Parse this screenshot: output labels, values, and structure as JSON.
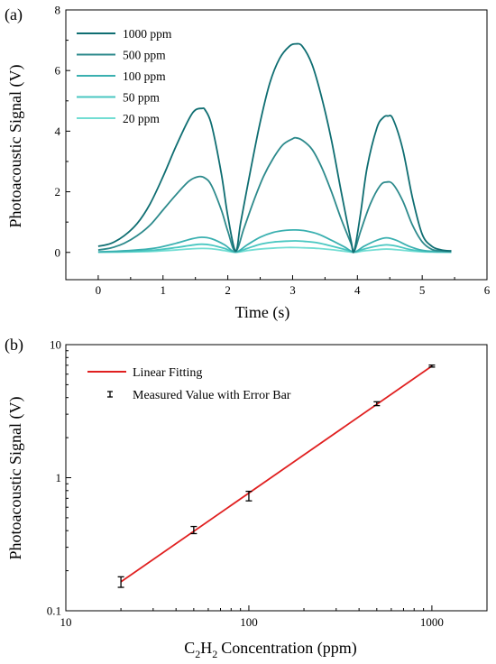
{
  "chart_data": [
    {
      "panel_label": "(a)",
      "type": "line",
      "xlabel": "Time (s)",
      "ylabel": "Photoacoustic Signal (V)",
      "xlim": [
        -0.5,
        6
      ],
      "ylim": [
        -0.9,
        8
      ],
      "xticks": [
        "0",
        "1",
        "2",
        "3",
        "4",
        "5",
        "6"
      ],
      "yticks": [
        "0",
        "2",
        "4",
        "6",
        "8"
      ],
      "legend_position": "top-left",
      "grid": false,
      "series": [
        {
          "name": "1000 ppm",
          "color": "#0f6e72",
          "x": [
            0,
            0.2,
            0.4,
            0.6,
            0.8,
            1.0,
            1.2,
            1.4,
            1.5,
            1.6,
            1.65,
            1.75,
            1.9,
            2.0,
            2.12,
            2.2,
            2.35,
            2.5,
            2.65,
            2.8,
            2.95,
            3.05,
            3.15,
            3.3,
            3.45,
            3.6,
            3.75,
            3.9,
            3.95,
            4.05,
            4.15,
            4.3,
            4.4,
            4.47,
            4.55,
            4.7,
            4.85,
            5.0,
            5.15,
            5.3,
            5.45
          ],
          "y": [
            0.2,
            0.3,
            0.55,
            0.95,
            1.6,
            2.5,
            3.5,
            4.4,
            4.7,
            4.75,
            4.7,
            4.2,
            2.6,
            1.2,
            0.05,
            1.0,
            2.7,
            4.3,
            5.6,
            6.4,
            6.8,
            6.88,
            6.8,
            6.2,
            5.1,
            3.7,
            2.0,
            0.4,
            0.05,
            1.3,
            2.8,
            4.1,
            4.45,
            4.5,
            4.4,
            3.4,
            1.8,
            0.6,
            0.2,
            0.08,
            0.05
          ]
        },
        {
          "name": "500 ppm",
          "color": "#2d8a8c",
          "x": [
            0,
            0.2,
            0.4,
            0.6,
            0.8,
            1.0,
            1.2,
            1.4,
            1.55,
            1.65,
            1.75,
            1.9,
            2.0,
            2.12,
            2.25,
            2.4,
            2.55,
            2.7,
            2.85,
            3.0,
            3.05,
            3.15,
            3.3,
            3.45,
            3.6,
            3.75,
            3.9,
            3.95,
            4.05,
            4.2,
            4.35,
            4.45,
            4.55,
            4.7,
            4.85,
            5.0,
            5.15,
            5.3,
            5.45
          ],
          "y": [
            0.08,
            0.15,
            0.3,
            0.55,
            0.9,
            1.4,
            1.9,
            2.35,
            2.5,
            2.45,
            2.2,
            1.4,
            0.7,
            0.03,
            0.8,
            1.7,
            2.5,
            3.1,
            3.55,
            3.75,
            3.78,
            3.7,
            3.4,
            2.8,
            2.0,
            1.1,
            0.3,
            0.03,
            0.7,
            1.6,
            2.2,
            2.32,
            2.25,
            1.7,
            0.9,
            0.35,
            0.1,
            0.05,
            0.03
          ]
        },
        {
          "name": "100 ppm",
          "color": "#3ab0b0",
          "x": [
            0,
            0.3,
            0.6,
            0.9,
            1.2,
            1.45,
            1.6,
            1.75,
            1.95,
            2.12,
            2.3,
            2.5,
            2.7,
            2.9,
            3.05,
            3.2,
            3.4,
            3.6,
            3.8,
            3.95,
            4.1,
            4.3,
            4.45,
            4.6,
            4.8,
            5.0,
            5.2,
            5.45
          ],
          "y": [
            0.02,
            0.04,
            0.08,
            0.15,
            0.3,
            0.45,
            0.5,
            0.45,
            0.25,
            0.01,
            0.25,
            0.5,
            0.66,
            0.73,
            0.74,
            0.71,
            0.6,
            0.4,
            0.18,
            0.01,
            0.2,
            0.4,
            0.48,
            0.4,
            0.2,
            0.07,
            0.03,
            0.02
          ]
        },
        {
          "name": "50 ppm",
          "color": "#49c7c1",
          "x": [
            0,
            0.3,
            0.6,
            0.9,
            1.2,
            1.45,
            1.6,
            1.75,
            1.95,
            2.12,
            2.3,
            2.5,
            2.7,
            2.9,
            3.05,
            3.2,
            3.4,
            3.6,
            3.8,
            3.95,
            4.1,
            4.3,
            4.45,
            4.6,
            4.8,
            5.0,
            5.2,
            5.45
          ],
          "y": [
            0.01,
            0.02,
            0.04,
            0.08,
            0.16,
            0.24,
            0.27,
            0.24,
            0.13,
            0.01,
            0.13,
            0.27,
            0.34,
            0.37,
            0.38,
            0.36,
            0.31,
            0.21,
            0.1,
            0.01,
            0.11,
            0.21,
            0.25,
            0.21,
            0.1,
            0.04,
            0.02,
            0.01
          ]
        },
        {
          "name": "20 ppm",
          "color": "#72ddd3",
          "x": [
            0,
            0.3,
            0.6,
            0.9,
            1.2,
            1.45,
            1.6,
            1.75,
            1.95,
            2.12,
            2.3,
            2.5,
            2.7,
            2.9,
            3.05,
            3.2,
            3.4,
            3.6,
            3.8,
            3.95,
            4.1,
            4.3,
            4.45,
            4.6,
            4.8,
            5.0,
            5.2,
            5.45
          ],
          "y": [
            0.005,
            0.01,
            0.02,
            0.04,
            0.08,
            0.12,
            0.13,
            0.12,
            0.06,
            0.005,
            0.06,
            0.11,
            0.14,
            0.16,
            0.16,
            0.15,
            0.13,
            0.09,
            0.04,
            0.005,
            0.05,
            0.09,
            0.11,
            0.09,
            0.05,
            0.02,
            0.01,
            0.005
          ]
        }
      ]
    },
    {
      "panel_label": "(b)",
      "type": "scatter",
      "xlabel": "Concentration (ppm)",
      "xlabel_species": "C",
      "xlabel_sub1": "2",
      "xlabel_mid": "H",
      "xlabel_sub2": "2",
      "ylabel": "Photoacoustic Signal (V)",
      "xscale": "log",
      "yscale": "log",
      "xlim": [
        10,
        2000
      ],
      "ylim": [
        0.1,
        10
      ],
      "xticks": [
        "10",
        "100",
        "1000"
      ],
      "yticks": [
        "0.1",
        "1",
        "10"
      ],
      "legend_position": "top-left",
      "grid": false,
      "fit": {
        "name": "Linear Fitting",
        "color": "#e02020",
        "x": [
          20,
          1000
        ],
        "y": [
          0.165,
          6.9
        ]
      },
      "measured": {
        "name": "Measured Value with Error Bar",
        "x": [
          20,
          50,
          100,
          500,
          1000
        ],
        "y": [
          0.165,
          0.405,
          0.73,
          3.6,
          6.9
        ],
        "err": [
          0.015,
          0.025,
          0.06,
          0.12,
          0.12
        ]
      }
    }
  ]
}
